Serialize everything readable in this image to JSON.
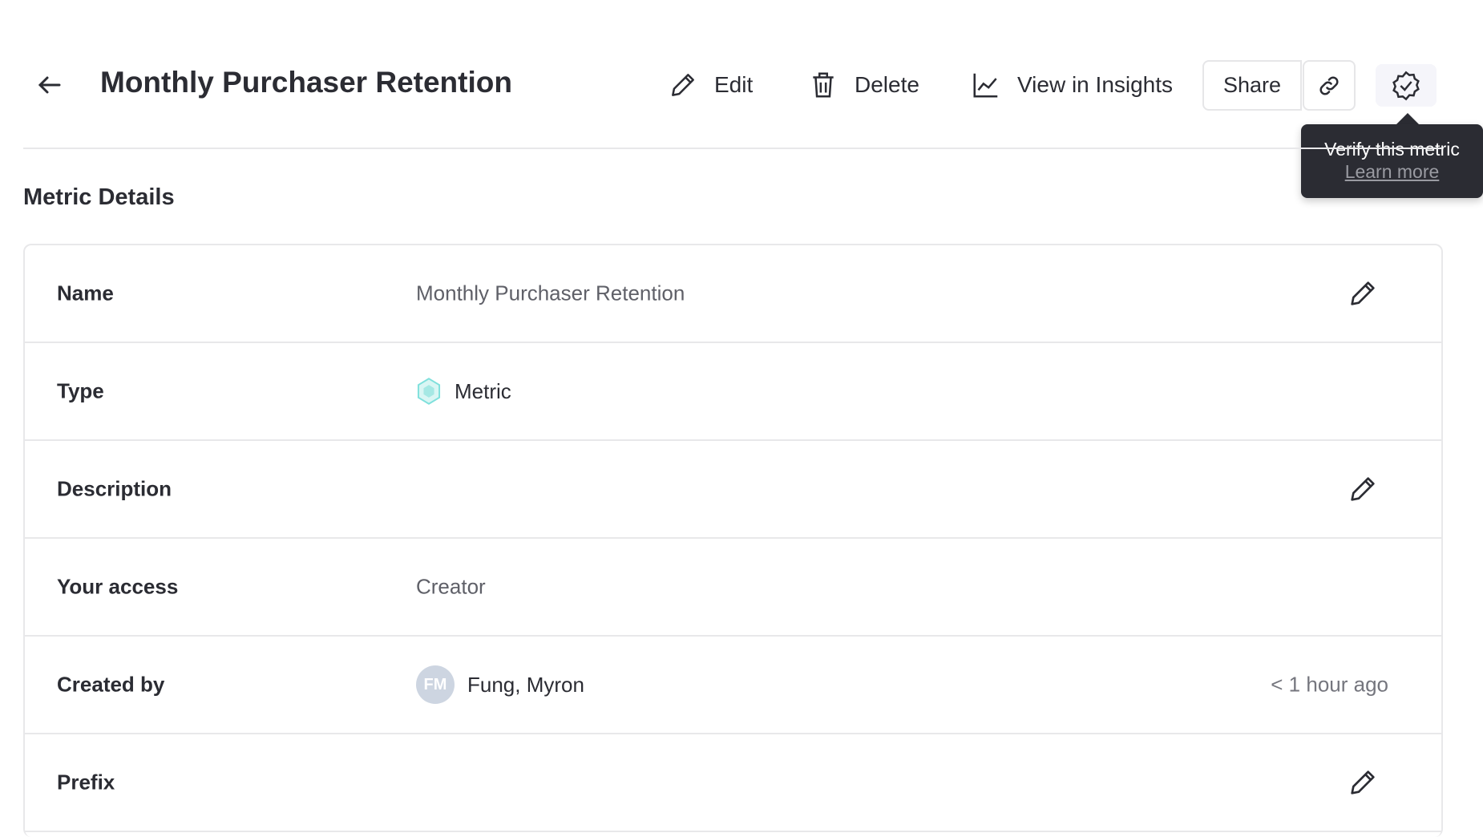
{
  "header": {
    "title": "Monthly Purchaser Retention",
    "edit": "Edit",
    "delete": "Delete",
    "insights": "View in Insights",
    "share": "Share"
  },
  "tooltip": {
    "text": "Verify this metric",
    "link": "Learn more"
  },
  "section_title": "Metric Details",
  "details": {
    "name": {
      "label": "Name",
      "value": "Monthly Purchaser Retention"
    },
    "type": {
      "label": "Type",
      "value": "Metric"
    },
    "description": {
      "label": "Description",
      "value": ""
    },
    "access": {
      "label": "Your access",
      "value": "Creator"
    },
    "created": {
      "label": "Created by",
      "initials": "FM",
      "value": "Fung, Myron",
      "time": "< 1 hour ago"
    },
    "prefix": {
      "label": "Prefix"
    }
  },
  "colors": {
    "metric_icon": "#7fe0dc",
    "tooltip_bg": "#2b2c33",
    "avatar": "#cdd5e1"
  }
}
